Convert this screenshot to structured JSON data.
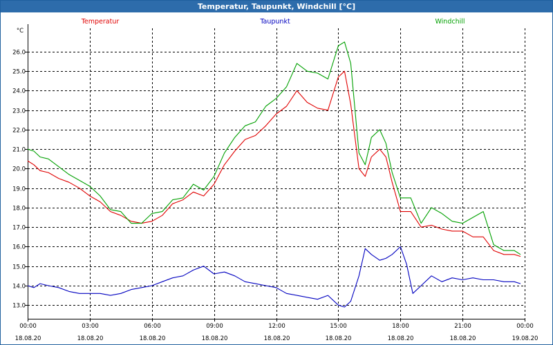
{
  "window": {
    "title": "Temperatur, Taupunkt, Windchill [°C]"
  },
  "chart_data": {
    "type": "line",
    "title": "Temperatur, Taupunkt, Windchill [°C]",
    "ylabel": "°C",
    "ylim": [
      12.3,
      27.2
    ],
    "xlim": [
      0,
      24
    ],
    "grid": true,
    "y_ticks": [
      13.0,
      14.0,
      15.0,
      16.0,
      17.0,
      18.0,
      19.0,
      20.0,
      21.0,
      22.0,
      23.0,
      24.0,
      25.0,
      26.0
    ],
    "x_ticks": [
      {
        "hour": 0,
        "time": "00:00",
        "date": "18.08.20"
      },
      {
        "hour": 3,
        "time": "03:00",
        "date": "18.08.20"
      },
      {
        "hour": 6,
        "time": "06:00",
        "date": "18.08.20"
      },
      {
        "hour": 9,
        "time": "09:00",
        "date": "18.08.20"
      },
      {
        "hour": 12,
        "time": "12:00",
        "date": "18.08.20"
      },
      {
        "hour": 15,
        "time": "15:00",
        "date": "18.08.20"
      },
      {
        "hour": 18,
        "time": "18:00",
        "date": "18.08.20"
      },
      {
        "hour": 21,
        "time": "21:00",
        "date": "18.08.20"
      },
      {
        "hour": 24,
        "time": "00:00",
        "date": "19.08.20"
      }
    ],
    "series": [
      {
        "name": "Temperatur",
        "color": "#e00000",
        "x": [
          0,
          0.3,
          0.6,
          1,
          1.5,
          2,
          2.5,
          3,
          3.5,
          4,
          4.5,
          5,
          5.5,
          6,
          6.5,
          7,
          7.5,
          8,
          8.5,
          9,
          9.5,
          10,
          10.5,
          11,
          11.5,
          12,
          12.5,
          13,
          13.5,
          14,
          14.5,
          15,
          15.3,
          15.6,
          16,
          16.3,
          16.6,
          17,
          17.3,
          17.6,
          18,
          18.5,
          19,
          19.5,
          20,
          20.5,
          21,
          21.5,
          22,
          22.5,
          23,
          23.5,
          23.8
        ],
        "values": [
          20.4,
          20.2,
          19.9,
          19.8,
          19.5,
          19.3,
          19.0,
          18.6,
          18.3,
          17.8,
          17.6,
          17.3,
          17.2,
          17.3,
          17.6,
          18.2,
          18.4,
          18.8,
          18.6,
          19.2,
          20.2,
          20.9,
          21.5,
          21.7,
          22.2,
          22.8,
          23.2,
          24.0,
          23.4,
          23.1,
          23.0,
          24.7,
          25.0,
          23.3,
          20.0,
          19.6,
          20.6,
          21.0,
          20.6,
          19.3,
          17.8,
          17.8,
          17.0,
          17.1,
          16.9,
          16.8,
          16.8,
          16.5,
          16.5,
          15.8,
          15.6,
          15.6,
          15.5
        ]
      },
      {
        "name": "Taupunkt",
        "color": "#0000c0",
        "x": [
          0,
          0.3,
          0.6,
          1,
          1.5,
          2,
          2.5,
          3,
          3.5,
          4,
          4.5,
          5,
          5.5,
          6,
          6.5,
          7,
          7.5,
          8,
          8.5,
          9,
          9.5,
          10,
          10.5,
          11,
          11.5,
          12,
          12.5,
          13,
          13.5,
          14,
          14.5,
          15,
          15.3,
          15.6,
          16,
          16.3,
          16.6,
          17,
          17.3,
          17.6,
          18,
          18.3,
          18.6,
          19,
          19.5,
          20,
          20.5,
          21,
          21.5,
          22,
          22.5,
          23,
          23.5,
          23.8
        ],
        "values": [
          14.0,
          13.9,
          14.1,
          14.0,
          13.9,
          13.7,
          13.6,
          13.6,
          13.6,
          13.5,
          13.6,
          13.8,
          13.9,
          14.0,
          14.2,
          14.4,
          14.5,
          14.8,
          15.0,
          14.6,
          14.7,
          14.5,
          14.2,
          14.1,
          14.0,
          13.9,
          13.6,
          13.5,
          13.4,
          13.3,
          13.5,
          13.0,
          12.9,
          13.2,
          14.5,
          15.9,
          15.6,
          15.3,
          15.4,
          15.6,
          16.0,
          15.1,
          13.6,
          14.0,
          14.5,
          14.2,
          14.4,
          14.3,
          14.4,
          14.3,
          14.3,
          14.2,
          14.2,
          14.1
        ]
      },
      {
        "name": "Windchill",
        "color": "#00a000",
        "x": [
          0,
          0.3,
          0.6,
          1,
          1.5,
          2,
          2.5,
          3,
          3.5,
          4,
          4.5,
          5,
          5.5,
          6,
          6.5,
          7,
          7.5,
          8,
          8.5,
          9,
          9.5,
          10,
          10.5,
          11,
          11.5,
          12,
          12.5,
          13,
          13.5,
          14,
          14.5,
          15,
          15.3,
          15.6,
          16,
          16.3,
          16.6,
          17,
          17.3,
          17.6,
          18,
          18.5,
          19,
          19.5,
          20,
          20.5,
          21,
          21.5,
          22,
          22.5,
          23,
          23.5,
          23.8
        ],
        "values": [
          21.0,
          20.9,
          20.6,
          20.5,
          20.1,
          19.7,
          19.4,
          19.1,
          18.6,
          17.9,
          17.8,
          17.2,
          17.2,
          17.7,
          17.8,
          18.4,
          18.5,
          19.2,
          18.9,
          19.6,
          20.8,
          21.6,
          22.2,
          22.4,
          23.2,
          23.6,
          24.2,
          25.4,
          25.0,
          24.9,
          24.6,
          26.3,
          26.5,
          25.4,
          20.8,
          20.2,
          21.6,
          22.0,
          21.3,
          19.8,
          18.5,
          18.5,
          17.2,
          18.0,
          17.7,
          17.3,
          17.2,
          17.5,
          17.8,
          16.1,
          15.8,
          15.8,
          15.6
        ]
      }
    ]
  }
}
